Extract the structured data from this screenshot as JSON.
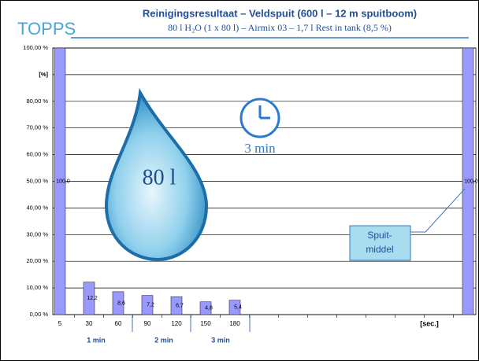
{
  "logo": "TOPPS",
  "chart_data": {
    "type": "bar",
    "title": "Reinigingsresultaat – Veldspuit (600 l – 12 m spuitboom)",
    "subtitle": "80 l H₂O (1 x 80 l) – Airmix 03 – 1,7 l Rest in tank (8,5 %)",
    "categories": [
      "5",
      "30",
      "60",
      "90",
      "120",
      "150",
      "180",
      null,
      null,
      null,
      null,
      null,
      null,
      null,
      null
    ],
    "values": [
      100,
      12.2,
      8.6,
      7.2,
      6.7,
      4.8,
      5.4,
      null,
      null,
      null,
      null,
      null,
      null,
      null,
      100
    ],
    "value_labels": [
      "100,0",
      "12,2",
      "8,6",
      "7,2",
      "6,7",
      "4,8",
      "5,4",
      null,
      null,
      null,
      null,
      null,
      null,
      null,
      "100,0"
    ],
    "color": "#9999ff",
    "x_label": "[sec.]",
    "groups": [
      "1 min",
      "2 min",
      "3 min"
    ],
    "ylim": [
      0,
      100
    ],
    "yticks": [
      {
        "value": 0,
        "label": "0,00 %"
      },
      {
        "value": 10,
        "label": "10,00 %"
      },
      {
        "value": 20,
        "label": "20,00 %"
      },
      {
        "value": 30,
        "label": "30,00 %"
      },
      {
        "value": 40,
        "label": "40,00 %"
      },
      {
        "value": 50,
        "label": "50,00 %"
      },
      {
        "value": 60,
        "label": "60,00 %"
      },
      {
        "value": 70,
        "label": "70,00 %"
      },
      {
        "value": 80,
        "label": "80,00 %"
      },
      {
        "value": 90,
        "label": "[%]"
      },
      {
        "value": 100,
        "label": "100,00 %"
      }
    ],
    "grid": true,
    "annotations": {
      "drop": "80 l",
      "clock": "3 min",
      "callout": [
        "Spuit-",
        "middel"
      ]
    }
  }
}
